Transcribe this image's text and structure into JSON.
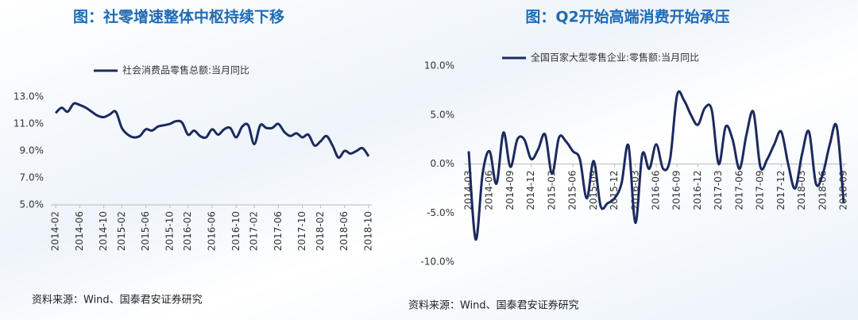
{
  "chart_data": [
    {
      "type": "line",
      "title": "图：社零增速整体中枢持续下移",
      "source": "资料来源：Wind、国泰君安证券研究",
      "legend": "top",
      "categories": [
        "2014-02",
        null,
        null,
        null,
        "2014-06",
        null,
        null,
        null,
        "2014-10",
        null,
        null,
        "2015-02",
        null,
        null,
        null,
        "2015-06",
        null,
        null,
        null,
        "2015-10",
        null,
        null,
        "2016-02",
        null,
        null,
        null,
        "2016-06",
        null,
        null,
        null,
        "2016-10",
        null,
        null,
        "2017-02",
        null,
        null,
        null,
        "2017-06",
        null,
        null,
        null,
        "2017-10",
        null,
        null,
        "2018-02",
        null,
        null,
        null,
        "2018-06",
        null,
        null,
        null,
        "2018-10"
      ],
      "series": [
        {
          "name": "社会消费品零售总额:当月同比",
          "color": "#1b2a5e",
          "values": [
            11.8,
            12.2,
            11.9,
            12.5,
            12.4,
            12.2,
            11.9,
            11.6,
            11.5,
            11.7,
            11.9,
            10.7,
            10.2,
            10.0,
            10.1,
            10.6,
            10.5,
            10.8,
            10.9,
            11.0,
            11.2,
            11.1,
            10.2,
            10.5,
            10.1,
            10.0,
            10.6,
            10.2,
            10.6,
            10.7,
            10.0,
            10.8,
            10.9,
            9.5,
            10.9,
            10.7,
            10.7,
            11.0,
            10.4,
            10.1,
            10.3,
            10.0,
            10.2,
            9.4,
            9.7,
            10.1,
            9.4,
            8.5,
            9.0,
            8.8,
            9.0,
            9.2,
            8.6
          ]
        }
      ],
      "ylim": [
        5,
        13
      ],
      "yticks": [
        {
          "value": 5,
          "label": "5.0%"
        },
        {
          "value": 7,
          "label": "7.0%"
        },
        {
          "value": 9,
          "label": "9.0%"
        },
        {
          "value": 11,
          "label": "11.0%"
        },
        {
          "value": 13,
          "label": "13.0%"
        }
      ]
    },
    {
      "type": "line",
      "title": "图：Q2开始高端消费开始承压",
      "source": "资料来源：Wind、国泰君安证券研究",
      "legend": "top",
      "categories": [
        "2014-03",
        null,
        null,
        "2014-06",
        null,
        null,
        "2014-09",
        null,
        null,
        "2014-12",
        null,
        null,
        "2015-03",
        null,
        null,
        "2015-06",
        null,
        null,
        "2015-09",
        null,
        null,
        "2015-12",
        null,
        null,
        "2016-03",
        null,
        null,
        "2016-06",
        null,
        null,
        "2016-09",
        null,
        null,
        "2016-12",
        null,
        null,
        "2017-03",
        null,
        null,
        "2017-06",
        null,
        null,
        "2017-09",
        null,
        null,
        "2017-12",
        null,
        null,
        "2018-03",
        null,
        null,
        "2018-06",
        null,
        null,
        "2018-09"
      ],
      "series": [
        {
          "name": "全国百家大型零售企业:零售额:当月同比",
          "color": "#1b2a5e",
          "values": [
            1.3,
            -7.7,
            -1,
            1.3,
            -2,
            3.2,
            -0.3,
            2.5,
            2.5,
            0.5,
            1.5,
            3,
            -1,
            2.7,
            2.3,
            1.3,
            0.5,
            -3.5,
            0.3,
            -4.3,
            -4,
            -3.5,
            -2,
            1.9,
            -6,
            1,
            -0.5,
            2,
            -0.5,
            0.5,
            7,
            6.5,
            5,
            4,
            5.7,
            5.5,
            0,
            3.8,
            2.5,
            -0.5,
            3,
            5.3,
            -0.3,
            0.5,
            2,
            3.3,
            0,
            -2.5,
            1,
            3.3,
            -2,
            -1,
            2,
            3.8,
            -4
          ]
        }
      ],
      "ylim": [
        -10,
        10
      ],
      "yticks": [
        {
          "value": -10,
          "label": "-10.0%"
        },
        {
          "value": -5,
          "label": "-5.0%"
        },
        {
          "value": 0,
          "label": "0.0%"
        },
        {
          "value": 5,
          "label": "5.0%"
        },
        {
          "value": 10,
          "label": "10.0%"
        }
      ]
    }
  ]
}
